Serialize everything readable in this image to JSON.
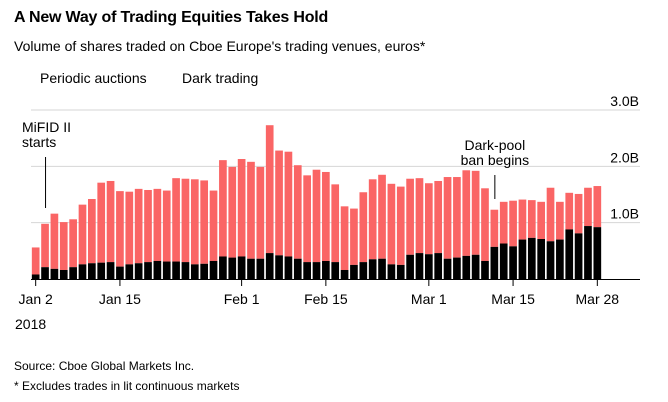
{
  "title": "A New Way of Trading Equities Takes Hold",
  "subtitle": "Volume of shares traded on Cboe Europe's trading venues, euros*",
  "source": "Source: Cboe Global Markets Inc.",
  "note": "* Excludes trades in lit continuous markets",
  "colors": {
    "periodic": "#fa6565",
    "dark": "#000000"
  },
  "chart_data": {
    "type": "bar",
    "stacked": true,
    "ylim": [
      0,
      3.0
    ],
    "y_ticks": [
      "1.0B",
      "2.0B",
      "3.0B"
    ],
    "y_tick_values": [
      1.0,
      2.0,
      3.0
    ],
    "x_tick_labels": [
      "Jan 2",
      "Jan 15",
      "Feb 1",
      "Feb 15",
      "Mar 1",
      "Mar 15",
      "Mar 28"
    ],
    "x_tick_index": [
      0,
      9,
      22,
      31,
      42,
      51,
      60
    ],
    "year_label": "2018",
    "series": [
      {
        "name": "Periodic auctions",
        "values": [
          0.48,
          0.77,
          0.98,
          0.85,
          0.85,
          1.06,
          1.14,
          1.42,
          1.44,
          1.34,
          1.29,
          1.32,
          1.28,
          1.28,
          1.26,
          1.48,
          1.48,
          1.51,
          1.48,
          1.25,
          1.71,
          1.61,
          1.73,
          1.72,
          1.63,
          2.27,
          1.86,
          1.86,
          1.66,
          1.54,
          1.64,
          1.58,
          1.38,
          1.13,
          1.0,
          1.24,
          1.42,
          1.49,
          1.43,
          1.39,
          1.35,
          1.33,
          1.26,
          1.28,
          1.45,
          1.43,
          1.52,
          1.49,
          1.29,
          0.66,
          0.74,
          0.81,
          0.71,
          0.67,
          0.66,
          0.95,
          0.67,
          0.65,
          0.7,
          0.68,
          0.73
        ],
        "label": "Periodic auctions"
      },
      {
        "name": "Dark trading",
        "values": [
          0.08,
          0.21,
          0.18,
          0.16,
          0.21,
          0.26,
          0.28,
          0.29,
          0.3,
          0.22,
          0.26,
          0.28,
          0.3,
          0.32,
          0.31,
          0.31,
          0.3,
          0.26,
          0.27,
          0.32,
          0.4,
          0.38,
          0.4,
          0.36,
          0.36,
          0.46,
          0.42,
          0.4,
          0.36,
          0.3,
          0.3,
          0.32,
          0.3,
          0.16,
          0.25,
          0.3,
          0.35,
          0.36,
          0.26,
          0.25,
          0.43,
          0.46,
          0.44,
          0.46,
          0.36,
          0.38,
          0.41,
          0.43,
          0.32,
          0.57,
          0.63,
          0.58,
          0.7,
          0.73,
          0.71,
          0.67,
          0.7,
          0.88,
          0.81,
          0.94,
          0.92
        ],
        "label": "Dark trading"
      }
    ],
    "annotations": [
      {
        "text": [
          "MiFID II",
          "starts"
        ],
        "index": 1
      },
      {
        "text": [
          "Dark-pool",
          "ban begins"
        ],
        "index": 49
      }
    ]
  }
}
